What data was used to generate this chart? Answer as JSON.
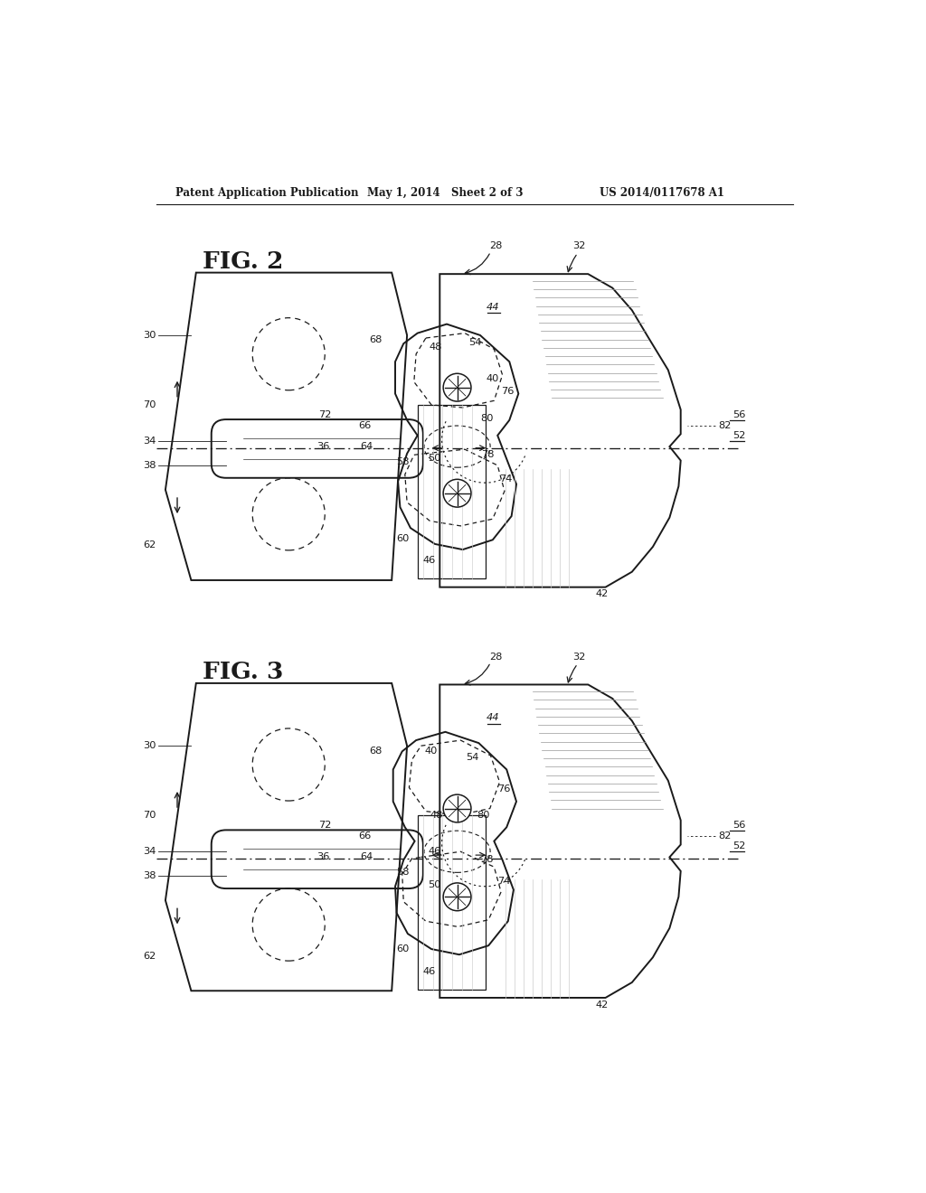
{
  "bg_color": "#ffffff",
  "lc": "#1a1a1a",
  "gc": "#999999",
  "lgc": "#cccccc",
  "header_left": "Patent Application Publication",
  "header_mid": "May 1, 2014   Sheet 2 of 3",
  "header_right": "US 2014/0117678 A1",
  "fig2_label": "FIG. 2",
  "fig3_label": "FIG. 3"
}
